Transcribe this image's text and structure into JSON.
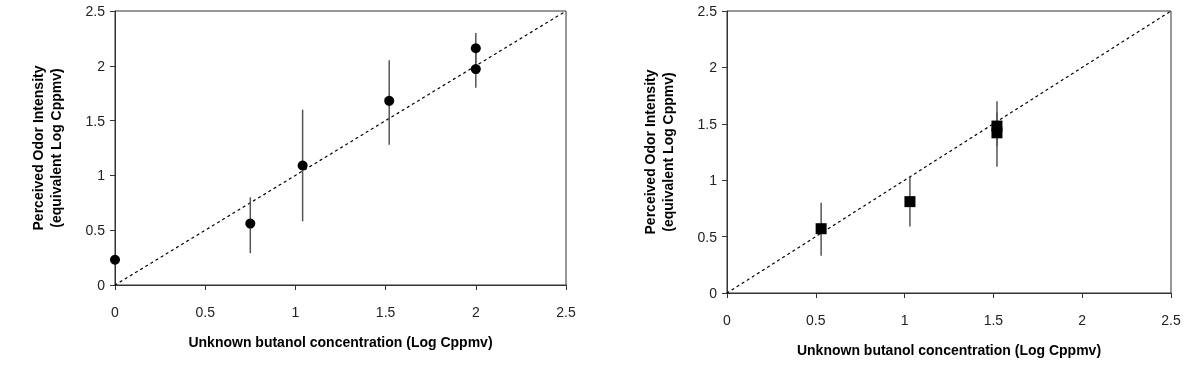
{
  "chart_data": [
    {
      "type": "scatter",
      "xlabel": "Unknown butanol concentration (Log Cppmv)",
      "ylabel": "Perceived Odor Intensity\n(equivalent Log Cppmv)",
      "xlim": [
        0,
        2.5
      ],
      "ylim": [
        0,
        2.5
      ],
      "xticks": [
        0,
        0.5,
        1,
        1.5,
        2,
        2.5
      ],
      "yticks": [
        0,
        0.5,
        1,
        1.5,
        2,
        2.5
      ],
      "grid": false,
      "series": [
        {
          "type": "line",
          "x": [
            0,
            2.5
          ],
          "values": [
            0,
            2.5
          ],
          "color": "#000000",
          "line_style": "dotted",
          "marker": "none"
        },
        {
          "x": [
            0,
            0.75,
            1.04,
            1.52,
            2.0,
            2.0
          ],
          "values": [
            0.23,
            0.56,
            1.09,
            1.68,
            1.97,
            2.16
          ],
          "color": "#000000",
          "marker": "circle",
          "errors": [
            null,
            [
              0.29,
              0.8
            ],
            [
              0.58,
              1.6
            ],
            [
              1.28,
              2.05
            ],
            [
              1.8,
              2.12
            ],
            [
              2.02,
              2.3
            ]
          ]
        }
      ]
    },
    {
      "type": "scatter",
      "xlabel": "Unknown butanol concentration (Log Cppmv)",
      "ylabel": "Perceived Odor Intensity\n(equivalent Log Cppmv)",
      "xlim": [
        0,
        2.5
      ],
      "ylim": [
        0,
        2.5
      ],
      "xticks": [
        0,
        0.5,
        1,
        1.5,
        2,
        2.5
      ],
      "yticks": [
        0,
        0.5,
        1,
        1.5,
        2,
        2.5
      ],
      "grid": false,
      "series": [
        {
          "type": "line",
          "x": [
            0,
            2.5
          ],
          "values": [
            0,
            2.5
          ],
          "color": "#000000",
          "line_style": "dotted",
          "marker": "none"
        },
        {
          "x": [
            0.53,
            1.03,
            1.52,
            1.52
          ],
          "values": [
            0.57,
            0.81,
            1.42,
            1.48
          ],
          "color": "#000000",
          "marker": "square",
          "errors": [
            [
              0.33,
              0.8
            ],
            [
              0.59,
              1.03
            ],
            [
              1.12,
              1.6
            ],
            [
              1.3,
              1.7
            ]
          ]
        }
      ]
    }
  ]
}
